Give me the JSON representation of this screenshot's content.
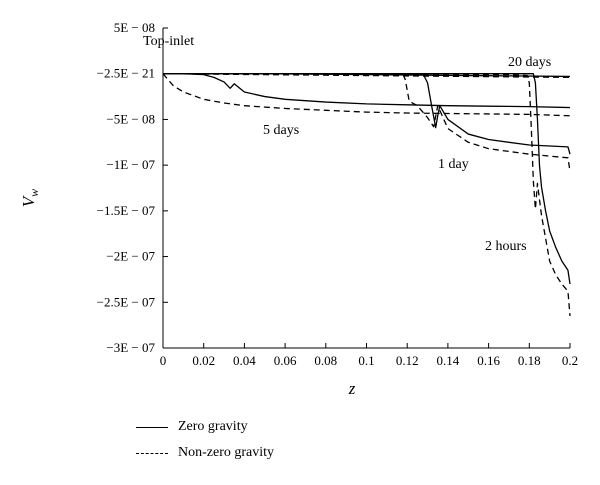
{
  "chart_data": {
    "type": "line",
    "title": "",
    "xlabel": "z",
    "ylabel": "V_w",
    "xlim": [
      0,
      0.2
    ],
    "ylim": [
      -3e-07,
      5e-08
    ],
    "x_ticks": [
      "0",
      "0.02",
      "0.04",
      "0.06",
      "0.08",
      "0.1",
      "0.12",
      "0.14",
      "0.16",
      "0.18",
      "0.2"
    ],
    "y_ticks": [
      "5E − 08",
      "−2.5E − 21",
      "−5E − 08",
      "−1E − 07",
      "−1.5E − 07",
      "−2E − 07",
      "−2.5E − 07",
      "−3E − 07"
    ],
    "annotations": [
      "Top-inlet",
      "20 days",
      "5 days",
      "1 day",
      "2 hours"
    ],
    "legend": {
      "placement": "bottom",
      "entries": [
        {
          "label": "Zero gravity",
          "style": "solid"
        },
        {
          "label": "Non-zero gravity",
          "style": "dashed"
        }
      ]
    },
    "series": [
      {
        "legend": "Zero gravity",
        "annotation": "20 days",
        "style": "solid",
        "x": [
          0,
          0.05,
          0.1,
          0.15,
          0.2
        ],
        "y": [
          0,
          0,
          -1e-09,
          -2e-09,
          -3e-09
        ]
      },
      {
        "legend": "Non-zero gravity",
        "annotation": "20 days",
        "style": "dashed",
        "x": [
          0,
          0.05,
          0.1,
          0.15,
          0.2
        ],
        "y": [
          0,
          -1e-09,
          -2e-09,
          -3e-09,
          -4e-09
        ]
      },
      {
        "legend": "Zero gravity",
        "annotation": "5 days",
        "style": "solid",
        "x": [
          0,
          0.01,
          0.02,
          0.025,
          0.03,
          0.033,
          0.035,
          0.04,
          0.05,
          0.06,
          0.08,
          0.1,
          0.12,
          0.14,
          0.16,
          0.18,
          0.2
        ],
        "y": [
          0,
          0,
          -1e-09,
          -4e-09,
          -9e-09,
          -1.6e-08,
          -1.1e-08,
          -2e-08,
          -2.5e-08,
          -2.8e-08,
          -3.1e-08,
          -3.3e-08,
          -3.4e-08,
          -3.5e-08,
          -3.55e-08,
          -3.6e-08,
          -3.7e-08
        ]
      },
      {
        "legend": "Non-zero gravity",
        "annotation": "5 days",
        "style": "dashed",
        "x": [
          0,
          0.005,
          0.01,
          0.02,
          0.03,
          0.04,
          0.06,
          0.08,
          0.1,
          0.12,
          0.14,
          0.16,
          0.18,
          0.2
        ],
        "y": [
          0,
          -1.3e-08,
          -2e-08,
          -2.8e-08,
          -3.2e-08,
          -3.5e-08,
          -3.8e-08,
          -4e-08,
          -4.2e-08,
          -4.3e-08,
          -4.35e-08,
          -4.4e-08,
          -4.45e-08,
          -4.6e-08
        ]
      },
      {
        "legend": "Zero gravity",
        "annotation": "1 day",
        "style": "solid",
        "x": [
          0,
          0.06,
          0.1,
          0.125,
          0.128,
          0.13,
          0.132,
          0.134,
          0.135,
          0.136,
          0.14,
          0.15,
          0.16,
          0.18,
          0.199,
          0.2
        ],
        "y": [
          0,
          0,
          0,
          0,
          -1e-09,
          -1e-08,
          -3.5e-08,
          -5.9e-08,
          -4.6e-08,
          -3.5e-08,
          -5e-08,
          -6.6e-08,
          -7.2e-08,
          -7.8e-08,
          -8e-08,
          -8.8e-08
        ]
      },
      {
        "legend": "Non-zero gravity",
        "annotation": "1 day",
        "style": "dashed",
        "x": [
          0,
          0.06,
          0.1,
          0.118,
          0.119,
          0.12,
          0.121,
          0.125,
          0.13,
          0.133,
          0.135,
          0.14,
          0.15,
          0.16,
          0.18,
          0.199,
          0.2
        ],
        "y": [
          0,
          0,
          -1e-09,
          -1e-09,
          -6e-09,
          -1.8e-08,
          -3e-08,
          -3.5e-08,
          -4.8e-08,
          -5.8e-08,
          -3.5e-08,
          -6e-08,
          -7.5e-08,
          -8.2e-08,
          -8.8e-08,
          -9.2e-08,
          -1.07e-07
        ]
      },
      {
        "legend": "Zero gravity",
        "annotation": "2 hours",
        "style": "solid",
        "x": [
          0,
          0.1,
          0.17,
          0.182,
          0.183,
          0.184,
          0.185,
          0.186,
          0.188,
          0.19,
          0.193,
          0.196,
          0.199,
          0.2
        ],
        "y": [
          0,
          0,
          0,
          0,
          -1e-08,
          -5e-08,
          -1e-07,
          -1.24e-07,
          -1.5e-07,
          -1.72e-07,
          -1.9e-07,
          -2.05e-07,
          -2.15e-07,
          -2.3e-07
        ]
      },
      {
        "legend": "Non-zero gravity",
        "annotation": "2 hours",
        "style": "dashed",
        "x": [
          0,
          0.1,
          0.17,
          0.179,
          0.18,
          0.181,
          0.182,
          0.183,
          0.184,
          0.186,
          0.188,
          0.19,
          0.193,
          0.196,
          0.199,
          0.2
        ],
        "y": [
          0,
          0,
          -1e-09,
          -2e-09,
          -1e-08,
          -6e-08,
          -1.18e-07,
          -1.48e-07,
          -1.2e-07,
          -1.55e-07,
          -1.8e-07,
          -2.05e-07,
          -2.2e-07,
          -2.3e-07,
          -2.38e-07,
          -2.65e-07
        ]
      }
    ]
  }
}
